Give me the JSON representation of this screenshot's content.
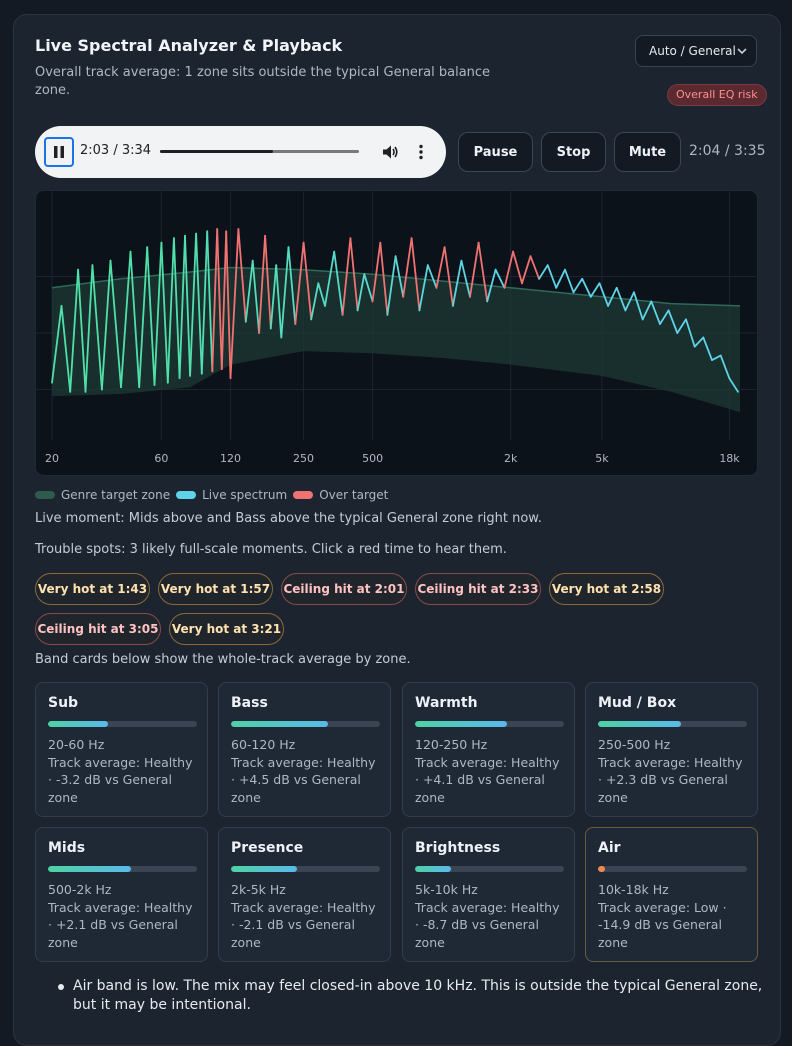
{
  "header": {
    "title": "Live Spectral Analyzer & Playback",
    "subtitle": "Overall track average: 1 zone sits outside the typical General balance zone.",
    "genre_select": "Auto / General",
    "risk_badge": "Overall EQ risk"
  },
  "player": {
    "time": "2:03 / 3:34",
    "progress": 0.57,
    "icons": [
      "pause-icon",
      "volume-icon",
      "more-vert-icon"
    ]
  },
  "controls": {
    "pause_label": "Pause",
    "stop_label": "Stop",
    "mute_label": "Mute",
    "time_readout": "2:04 / 3:35"
  },
  "chart_data": {
    "type": "line",
    "x_scale": "log",
    "x_tick_labels": [
      "20",
      "60",
      "120",
      "250",
      "500",
      "2k",
      "5k",
      "18k"
    ],
    "x_tick_values": [
      20,
      60,
      120,
      250,
      500,
      2000,
      5000,
      18000
    ],
    "y_levels_note": "",
    "series": [
      {
        "name": "Genre target zone",
        "type": "band",
        "x": [
          20,
          40,
          80,
          120,
          250,
          500,
          1000,
          2000,
          5000,
          10000,
          20000
        ],
        "upper": [
          0.7,
          0.74,
          0.77,
          0.79,
          0.78,
          0.76,
          0.73,
          0.7,
          0.66,
          0.63,
          0.62
        ],
        "lower": [
          0.22,
          0.23,
          0.26,
          0.36,
          0.42,
          0.41,
          0.39,
          0.36,
          0.31,
          0.24,
          0.15
        ]
      },
      {
        "name": "Live spectrum",
        "type": "line",
        "x": [
          20,
          22,
          24,
          26,
          28,
          30,
          33,
          36,
          40,
          44,
          48,
          52,
          56,
          60,
          64,
          68,
          72,
          76,
          80,
          85,
          90,
          95,
          100,
          105,
          110,
          115,
          120,
          130,
          140,
          150,
          160,
          170,
          180,
          190,
          200,
          215,
          230,
          250,
          270,
          290,
          310,
          340,
          370,
          400,
          430,
          460,
          500,
          540,
          580,
          630,
          680,
          740,
          800,
          870,
          950,
          1030,
          1120,
          1220,
          1330,
          1450,
          1580,
          1720,
          1880,
          2050,
          2240,
          2440,
          2660,
          2900,
          3160,
          3450,
          3760,
          4100,
          4470,
          4880,
          5320,
          5800,
          6330,
          6900,
          7530,
          8210,
          8960,
          9770,
          10660,
          11630,
          12690,
          13840,
          15100,
          16470,
          17970,
          19600
        ],
        "y": [
          0.28,
          0.62,
          0.24,
          0.78,
          0.24,
          0.8,
          0.25,
          0.82,
          0.26,
          0.86,
          0.26,
          0.88,
          0.27,
          0.9,
          0.28,
          0.92,
          0.3,
          0.93,
          0.31,
          0.94,
          0.32,
          0.95,
          0.33,
          0.96,
          0.34,
          0.95,
          0.3,
          0.96,
          0.55,
          0.82,
          0.5,
          0.93,
          0.52,
          0.8,
          0.48,
          0.88,
          0.54,
          0.9,
          0.56,
          0.72,
          0.62,
          0.86,
          0.58,
          0.92,
          0.6,
          0.76,
          0.64,
          0.9,
          0.58,
          0.84,
          0.66,
          0.92,
          0.6,
          0.8,
          0.7,
          0.88,
          0.62,
          0.82,
          0.66,
          0.9,
          0.64,
          0.78,
          0.7,
          0.86,
          0.72,
          0.84,
          0.74,
          0.8,
          0.7,
          0.78,
          0.68,
          0.74,
          0.66,
          0.72,
          0.62,
          0.7,
          0.6,
          0.68,
          0.56,
          0.64,
          0.54,
          0.6,
          0.5,
          0.56,
          0.44,
          0.48,
          0.38,
          0.4,
          0.3,
          0.24
        ]
      },
      {
        "name": "Over target",
        "type": "highlight"
      }
    ]
  },
  "legend": {
    "genre_target": "Genre target zone",
    "live_spectrum": "Live spectrum",
    "over_target": "Over target",
    "colors": {
      "genre_target": "#2f5a4e",
      "live_spectrum": "#5fd3e8",
      "over_target": "#f07272"
    }
  },
  "status": {
    "live_moment": "Live moment: Mids above and Bass above the typical General zone right now.",
    "trouble_spots": "Trouble spots: 3 likely full-scale moments. Click a red time to hear them.",
    "band_note": "Band cards below show the whole-track average by zone."
  },
  "chips": [
    {
      "label": "Very hot at 1:43",
      "kind": "hot"
    },
    {
      "label": "Very hot at 1:57",
      "kind": "hot"
    },
    {
      "label": "Ceiling hit at 2:01",
      "kind": "ceil"
    },
    {
      "label": "Ceiling hit at 2:33",
      "kind": "ceil"
    },
    {
      "label": "Very hot at 2:58",
      "kind": "hot"
    },
    {
      "label": "Ceiling hit at 3:05",
      "kind": "ceil"
    },
    {
      "label": "Very hot at 3:21",
      "kind": "hot"
    }
  ],
  "bands": [
    {
      "name": "Sub",
      "range": "20-60 Hz",
      "desc": "Track average: Healthy · -3.2 dB vs General zone",
      "level": 0.4
    },
    {
      "name": "Bass",
      "range": "60-120 Hz",
      "desc": "Track average: Healthy · +4.5 dB vs General zone",
      "level": 0.65
    },
    {
      "name": "Warmth",
      "range": "120-250 Hz",
      "desc": "Track average: Healthy · +4.1 dB vs General zone",
      "level": 0.62
    },
    {
      "name": "Mud / Box",
      "range": "250-500 Hz",
      "desc": "Track average: Healthy · +2.3 dB vs General zone",
      "level": 0.56
    },
    {
      "name": "Mids",
      "range": "500-2k Hz",
      "desc": "Track average: Healthy · +2.1 dB vs General zone",
      "level": 0.56
    },
    {
      "name": "Presence",
      "range": "2k-5k Hz",
      "desc": "Track average: Healthy · -2.1 dB vs General zone",
      "level": 0.44
    },
    {
      "name": "Brightness",
      "range": "5k-10k Hz",
      "desc": "Track average: Healthy · -8.7 dB vs General zone",
      "level": 0.24
    },
    {
      "name": "Air",
      "range": "10k-18k Hz",
      "desc": "Track average: Low · -14.9 dB vs General zone",
      "level": 0.05,
      "status": "low"
    }
  ],
  "notes": [
    "Air band is low. The mix may feel closed-in above 10 kHz. This is outside the typical General zone, but it may be intentional."
  ]
}
